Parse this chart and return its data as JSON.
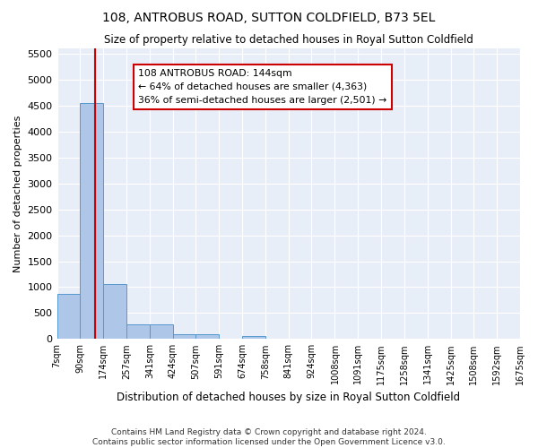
{
  "title": "108, ANTROBUS ROAD, SUTTON COLDFIELD, B73 5EL",
  "subtitle": "Size of property relative to detached houses in Royal Sutton Coldfield",
  "xlabel": "Distribution of detached houses by size in Royal Sutton Coldfield",
  "ylabel": "Number of detached properties",
  "footer_line1": "Contains HM Land Registry data © Crown copyright and database right 2024.",
  "footer_line2": "Contains public sector information licensed under the Open Government Licence v3.0.",
  "annotation_line1": "108 ANTROBUS ROAD: 144sqm",
  "annotation_line2": "← 64% of detached houses are smaller (4,363)",
  "annotation_line3": "36% of semi-detached houses are larger (2,501) →",
  "bar_color": "#aec6e8",
  "bar_edge_color": "#5599cc",
  "property_line_color": "#cc0000",
  "annotation_box_color": "#cc0000",
  "background_color": "#e8eef8",
  "bins": [
    "7sqm",
    "90sqm",
    "174sqm",
    "257sqm",
    "341sqm",
    "424sqm",
    "507sqm",
    "591sqm",
    "674sqm",
    "758sqm",
    "841sqm",
    "924sqm",
    "1008sqm",
    "1091sqm",
    "1175sqm",
    "1258sqm",
    "1341sqm",
    "1425sqm",
    "1508sqm",
    "1592sqm",
    "1675sqm"
  ],
  "bin_edges": [
    7,
    90,
    174,
    257,
    341,
    424,
    507,
    591,
    674,
    758,
    841,
    924,
    1008,
    1091,
    1175,
    1258,
    1341,
    1425,
    1508,
    1592,
    1675
  ],
  "bar_heights": [
    870,
    4560,
    1060,
    290,
    285,
    95,
    90,
    0,
    65,
    0,
    0,
    0,
    0,
    0,
    0,
    0,
    0,
    0,
    0,
    0
  ],
  "property_size": 144,
  "ylim": [
    0,
    5600
  ],
  "yticks": [
    0,
    500,
    1000,
    1500,
    2000,
    2500,
    3000,
    3500,
    4000,
    4500,
    5000,
    5500
  ]
}
